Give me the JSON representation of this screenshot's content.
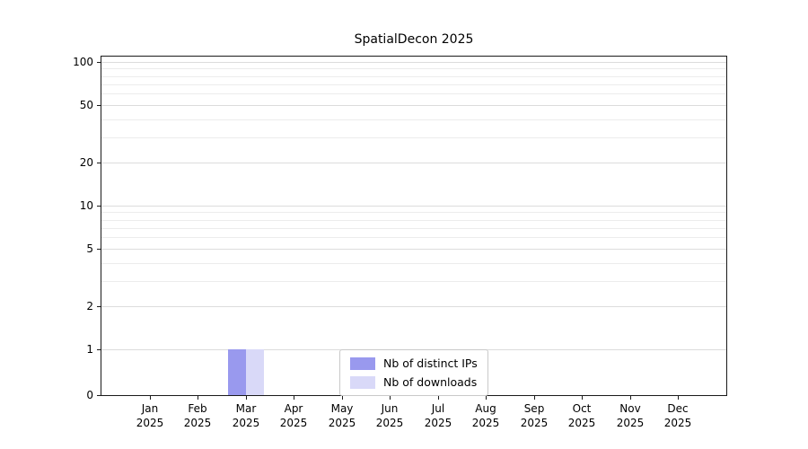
{
  "chart_data": {
    "type": "bar",
    "title": "SpatialDecon 2025",
    "categories": [
      "Jan 2025",
      "Feb 2025",
      "Mar 2025",
      "Apr 2025",
      "May 2025",
      "Jun 2025",
      "Jul 2025",
      "Aug 2025",
      "Sep 2025",
      "Oct 2025",
      "Nov 2025",
      "Dec 2025"
    ],
    "series": [
      {
        "name": "Nb of distinct IPs",
        "color": "#9999ee",
        "values": [
          0,
          0,
          1,
          0,
          0,
          0,
          0,
          0,
          0,
          0,
          0,
          0
        ]
      },
      {
        "name": "Nb of downloads",
        "color": "#d9d9f8",
        "values": [
          0,
          0,
          1,
          0,
          0,
          0,
          0,
          0,
          0,
          0,
          0,
          0
        ]
      }
    ],
    "yscale": "symlog",
    "ylim": [
      0,
      100
    ],
    "yticks_major": [
      0,
      1,
      2,
      5,
      10,
      20,
      50,
      100
    ],
    "yticks_minor": [
      3,
      4,
      6,
      7,
      8,
      9,
      30,
      40,
      60,
      70,
      80,
      90
    ],
    "grid": true,
    "legend_position": "lower center",
    "axis_color": "#1a1a1a",
    "gridline_major_color": "#dcdcdc",
    "gridline_minor_color": "#ececec"
  }
}
